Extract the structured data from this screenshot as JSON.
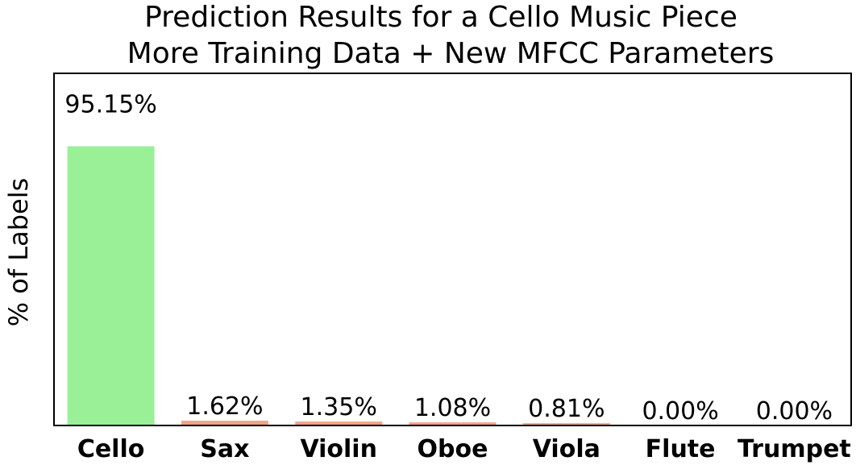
{
  "chart_data": {
    "type": "bar",
    "title": "Prediction Results for a Cello Music Piece",
    "subtitle": "More Training Data + New MFCC Parameters",
    "xlabel": "",
    "ylabel": "% of Labels",
    "categories": [
      "Cello",
      "Sax",
      "Violin",
      "Oboe",
      "Viola",
      "Flute",
      "Trumpet"
    ],
    "values": [
      95.15,
      1.62,
      1.35,
      1.08,
      0.81,
      0.0,
      0.0
    ],
    "data_labels": [
      "95.15%",
      "1.62%",
      "1.35%",
      "1.08%",
      "0.81%",
      "0.00%",
      "0.00%"
    ],
    "ylim": [
      0,
      120
    ],
    "y_ticks_shown": false,
    "grid": false,
    "colors": {
      "highlight": "#99f097",
      "other": "#f3a384",
      "axis": "#000000"
    },
    "bar_colors": [
      "highlight",
      "other",
      "other",
      "other",
      "other",
      "other",
      "other"
    ]
  }
}
